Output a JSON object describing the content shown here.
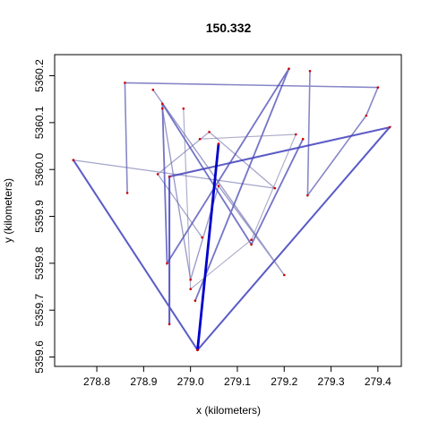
{
  "chart_data": {
    "type": "line",
    "title": "150.332",
    "xlabel": "x (kilometers)",
    "ylabel": "y (kilometers)",
    "xlim": [
      278.71,
      279.45
    ],
    "ylim": [
      5359.58,
      5360.245
    ],
    "x_ticks": [
      278.8,
      278.9,
      279.0,
      279.1,
      279.2,
      279.3,
      279.4
    ],
    "y_ticks": [
      5359.6,
      5359.7,
      5359.8,
      5359.9,
      5360.0,
      5360.1,
      5360.2
    ],
    "grid": false,
    "legend": "none",
    "colors": {
      "path": "#0000cc",
      "point": "#cc0000",
      "faint": "#999999"
    },
    "series": [
      {
        "x": [
          279.255,
          279.25,
          279.375,
          279.4,
          278.86,
          278.865
        ],
        "y": [
          5360.21,
          5359.945,
          5360.115,
          5360.175,
          5360.185,
          5359.95
        ],
        "weight": 0.45
      },
      {
        "x": [
          278.75,
          279.18,
          279.04,
          278.93,
          279.025
        ],
        "y": [
          5360.02,
          5359.96,
          5360.08,
          5359.99,
          5359.855
        ],
        "weight": 0.3
      },
      {
        "x": [
          279.015,
          278.75,
          279.015,
          279.425,
          278.955,
          278.955
        ],
        "y": [
          5359.615,
          5360.02,
          5359.615,
          5360.09,
          5359.985,
          5359.67
        ],
        "weight": 0.65
      },
      {
        "x": [
          279.01,
          279.21,
          278.95,
          278.94,
          279.13,
          279.24
        ],
        "y": [
          5359.72,
          5360.215,
          5359.8,
          5360.14,
          5359.84,
          5360.065
        ],
        "weight": 0.55
      },
      {
        "x": [
          278.94,
          279.0,
          279.06,
          279.2,
          278.92
        ],
        "y": [
          5360.13,
          5359.765,
          5359.965,
          5359.775,
          5360.17
        ],
        "weight": 0.35
      },
      {
        "x": [
          278.985,
          279.0,
          279.13,
          279.225,
          279.02
        ],
        "y": [
          5360.13,
          5359.745,
          5359.85,
          5360.075,
          5360.065
        ],
        "weight": 0.25
      },
      {
        "x": [
          279.015,
          279.06
        ],
        "y": [
          5359.615,
          5360.055
        ],
        "weight": 1.0
      }
    ]
  }
}
